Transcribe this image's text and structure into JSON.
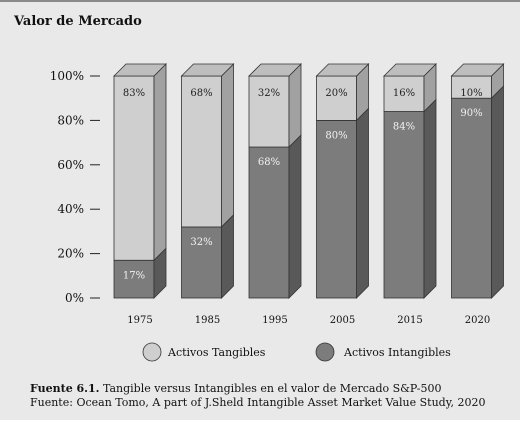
{
  "chart_data": {
    "type": "bar",
    "stacked": true,
    "title": "Valor de Mercado",
    "categories": [
      "1975",
      "1985",
      "1995",
      "2005",
      "2015",
      "2020"
    ],
    "series": [
      {
        "name": "Activos Intangibles",
        "values": [
          17,
          32,
          68,
          80,
          84,
          90
        ],
        "labels": [
          "17%",
          "32%",
          "68%",
          "80%",
          "84%",
          "90%"
        ],
        "color": "#7c7c7c"
      },
      {
        "name": "Activos Tangibles",
        "values": [
          83,
          68,
          32,
          20,
          16,
          10
        ],
        "labels": [
          "83%",
          "68%",
          "32%",
          "20%",
          "16%",
          "10%"
        ],
        "color": "#cfcfcf"
      }
    ],
    "y_ticks": [
      {
        "value": 0,
        "label": "0%"
      },
      {
        "value": 20,
        "label": "20%"
      },
      {
        "value": 40,
        "label": "40%"
      },
      {
        "value": 60,
        "label": "60%"
      },
      {
        "value": 80,
        "label": "80%"
      },
      {
        "value": 100,
        "label": "100%"
      }
    ],
    "ylim": [
      0,
      100
    ],
    "legend_position": "bottom",
    "grid": false
  },
  "caption": {
    "figure_label": "Fuente 6.1.",
    "figure_text": " Tangible versus Intangibles en el valor de Mercado S&P-500",
    "source_line": "Fuente: Ocean Tomo, A part of J.Sheld Intangible Asset Market Value Study, 2020"
  }
}
